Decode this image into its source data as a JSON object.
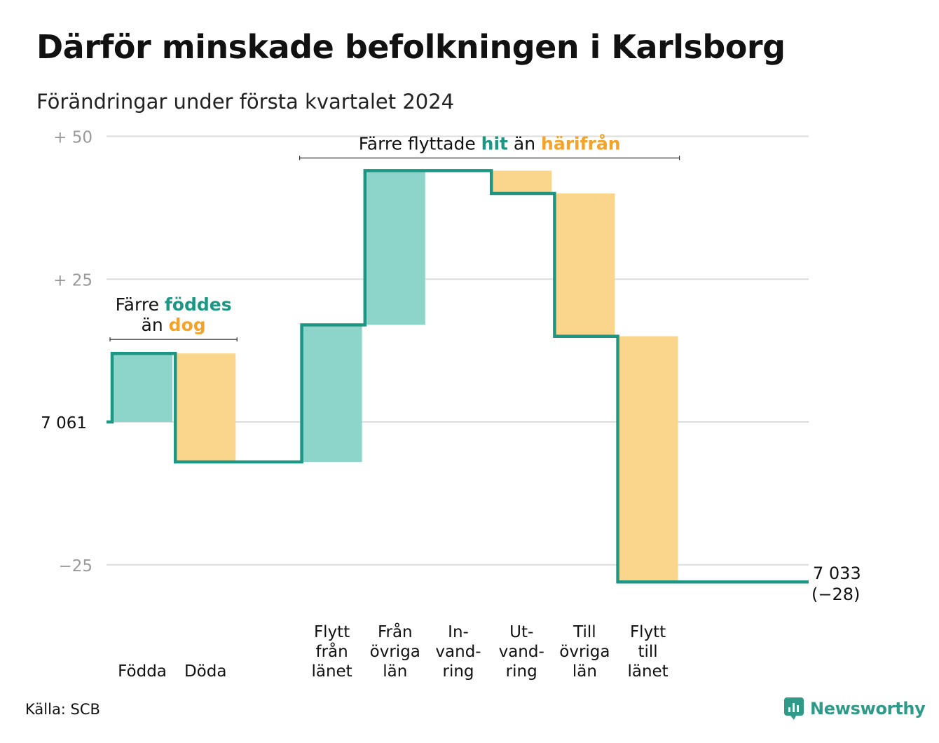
{
  "title": "Därför minskade befolkningen i Karlsborg",
  "subtitle": "Förändringar under första kvartalet 2024",
  "source": "Källa: SCB",
  "brand": "Newsworthy",
  "colors": {
    "increase_fill": "#8dd5cb",
    "decrease_fill": "#fad58c",
    "line": "#1d9683",
    "increase_text": "#1d9683",
    "decrease_text": "#f4a32a",
    "grid": "#dddddd",
    "tick_text": "#999999"
  },
  "chart_data": {
    "type": "waterfall",
    "start_value": 7061,
    "start_label": "7 061",
    "end_value": 7033,
    "end_label": "7 033",
    "end_change_label": "(−28)",
    "y_ticks": [
      {
        "value": 50,
        "label": "+ 50"
      },
      {
        "value": 25,
        "label": "+ 25"
      },
      {
        "value": -25,
        "label": "−25"
      }
    ],
    "ylim": [
      -28,
      50
    ],
    "steps": [
      {
        "label": [
          "",
          "",
          "Födda"
        ],
        "change": 12
      },
      {
        "label": [
          "",
          "",
          "Döda"
        ],
        "change": -19
      },
      {
        "label": [
          "",
          "",
          ""
        ],
        "change": 0
      },
      {
        "label": [
          "Flytt",
          "från",
          "länet"
        ],
        "change": 24
      },
      {
        "label": [
          "Från",
          "övriga",
          "län"
        ],
        "change": 27
      },
      {
        "label": [
          "In-",
          "vand-",
          "ring"
        ],
        "change": 0
      },
      {
        "label": [
          "Ut-",
          "vand-",
          "ring"
        ],
        "change": -4
      },
      {
        "label": [
          "Till",
          "övriga",
          "län"
        ],
        "change": -25
      },
      {
        "label": [
          "Flytt",
          "till",
          "länet"
        ],
        "change": -43
      },
      {
        "label": [
          "",
          "",
          ""
        ],
        "change": 0
      }
    ],
    "annotations": [
      {
        "line1": [
          {
            "text": "Färre ",
            "style": "plain"
          },
          {
            "text": "föddes",
            "style": "increase"
          }
        ],
        "line2": [
          {
            "text": "än ",
            "style": "plain"
          },
          {
            "text": "dog",
            "style": "decrease"
          }
        ],
        "from_step": 0,
        "to_step": 1
      },
      {
        "line1": [
          {
            "text": "Färre flyttade ",
            "style": "plain"
          },
          {
            "text": "hit",
            "style": "increase"
          },
          {
            "text": " än ",
            "style": "plain"
          },
          {
            "text": "härifrån",
            "style": "decrease"
          }
        ],
        "line2": [],
        "from_step": 3,
        "to_step": 8
      }
    ]
  }
}
